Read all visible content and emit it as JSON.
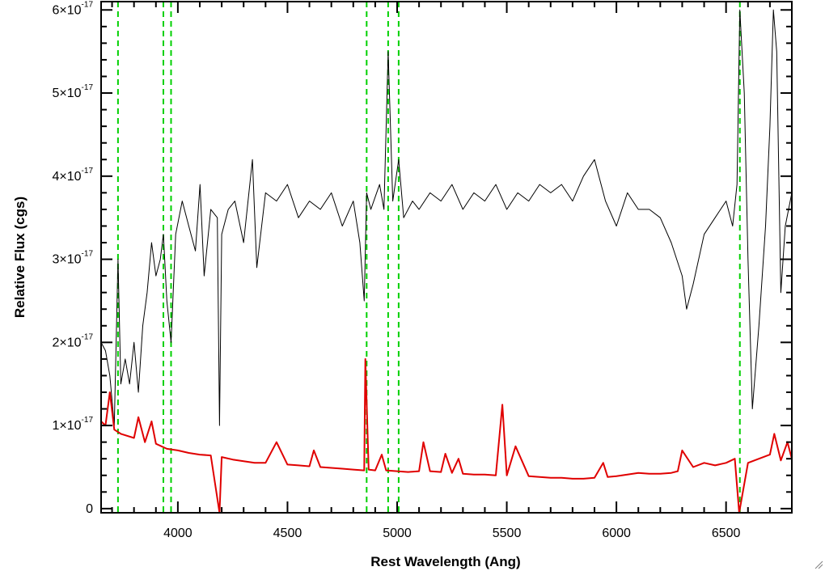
{
  "chart_data": {
    "type": "line",
    "xlabel": "Rest Wavelength (Ang)",
    "ylabel": "Relative Flux (cgs)",
    "xlim": [
      3650,
      6800
    ],
    "ylim": [
      -5e-19,
      6.1e-17
    ],
    "x_ticks": [
      {
        "value": 4000,
        "label": "4000"
      },
      {
        "value": 4500,
        "label": "4500"
      },
      {
        "value": 5000,
        "label": "5000"
      },
      {
        "value": 5500,
        "label": "5500"
      },
      {
        "value": 6000,
        "label": "6000"
      },
      {
        "value": 6500,
        "label": "6500"
      }
    ],
    "y_ticks": [
      {
        "value": 0,
        "mant": "0",
        "exp": ""
      },
      {
        "value": 1e-17,
        "mant": "1×10",
        "exp": "-17"
      },
      {
        "value": 2e-17,
        "mant": "2×10",
        "exp": "-17"
      },
      {
        "value": 3e-17,
        "mant": "3×10",
        "exp": "-17"
      },
      {
        "value": 4e-17,
        "mant": "4×10",
        "exp": "-17"
      },
      {
        "value": 5e-17,
        "mant": "5×10",
        "exp": "-17"
      },
      {
        "value": 6e-17,
        "mant": "6×10",
        "exp": "-17"
      }
    ],
    "grid": false,
    "series": [
      {
        "color": "#000000",
        "x": [
          3650,
          3670,
          3690,
          3710,
          3727,
          3740,
          3760,
          3780,
          3800,
          3820,
          3840,
          3860,
          3880,
          3900,
          3920,
          3934,
          3950,
          3969,
          3990,
          4020,
          4050,
          4080,
          4101,
          4120,
          4150,
          4180,
          4190,
          4200,
          4230,
          4260,
          4300,
          4340,
          4360,
          4400,
          4450,
          4500,
          4550,
          4600,
          4650,
          4700,
          4750,
          4800,
          4830,
          4850,
          4861,
          4880,
          4920,
          4940,
          4959,
          4980,
          5007,
          5030,
          5070,
          5100,
          5150,
          5200,
          5250,
          5300,
          5350,
          5400,
          5450,
          5500,
          5550,
          5600,
          5650,
          5700,
          5750,
          5800,
          5850,
          5900,
          5950,
          6000,
          6050,
          6100,
          6150,
          6200,
          6250,
          6300,
          6320,
          6350,
          6400,
          6450,
          6500,
          6530,
          6550,
          6563,
          6583,
          6600,
          6620,
          6650,
          6680,
          6700,
          6716,
          6731,
          6750,
          6770,
          6800
        ],
        "y": [
          2e-17,
          1.9e-17,
          1.6e-17,
          1e-17,
          3e-17,
          1.5e-17,
          1.8e-17,
          1.5e-17,
          2e-17,
          1.4e-17,
          2.2e-17,
          2.6e-17,
          3.2e-17,
          2.8e-17,
          3e-17,
          3.3e-17,
          2.5e-17,
          2e-17,
          3.3e-17,
          3.7e-17,
          3.4e-17,
          3.1e-17,
          3.9e-17,
          2.8e-17,
          3.6e-17,
          3.5e-17,
          1e-17,
          3.3e-17,
          3.6e-17,
          3.7e-17,
          3.2e-17,
          4.2e-17,
          2.9e-17,
          3.8e-17,
          3.7e-17,
          3.9e-17,
          3.5e-17,
          3.7e-17,
          3.6e-17,
          3.8e-17,
          3.4e-17,
          3.7e-17,
          3.2e-17,
          2.5e-17,
          3.8e-17,
          3.6e-17,
          3.9e-17,
          3.6e-17,
          5.5e-17,
          3.7e-17,
          4.2e-17,
          3.5e-17,
          3.7e-17,
          3.6e-17,
          3.8e-17,
          3.7e-17,
          3.9e-17,
          3.6e-17,
          3.8e-17,
          3.7e-17,
          3.9e-17,
          3.6e-17,
          3.8e-17,
          3.7e-17,
          3.9e-17,
          3.8e-17,
          3.9e-17,
          3.7e-17,
          4e-17,
          4.2e-17,
          3.7e-17,
          3.4e-17,
          3.8e-17,
          3.6e-17,
          3.6e-17,
          3.5e-17,
          3.2e-17,
          2.8e-17,
          2.4e-17,
          2.7e-17,
          3.3e-17,
          3.5e-17,
          3.7e-17,
          3.4e-17,
          3.9e-17,
          6e-17,
          5e-17,
          3e-17,
          1.2e-17,
          2.2e-17,
          3.4e-17,
          4.6e-17,
          6e-17,
          5.5e-17,
          2.6e-17,
          3.4e-17,
          3.8e-17
        ]
      },
      {
        "color": "#e00000",
        "x": [
          3650,
          3670,
          3690,
          3710,
          3740,
          3800,
          3820,
          3850,
          3880,
          3900,
          3950,
          4000,
          4050,
          4100,
          4150,
          4190,
          4200,
          4250,
          4300,
          4350,
          4400,
          4450,
          4500,
          4550,
          4600,
          4620,
          4650,
          4700,
          4750,
          4800,
          4850,
          4855,
          4870,
          4900,
          4930,
          4950,
          5000,
          5050,
          5100,
          5120,
          5150,
          5200,
          5220,
          5250,
          5280,
          5300,
          5350,
          5400,
          5450,
          5480,
          5500,
          5540,
          5600,
          5650,
          5700,
          5750,
          5800,
          5850,
          5900,
          5940,
          5960,
          6000,
          6050,
          6100,
          6150,
          6200,
          6250,
          6280,
          6300,
          6350,
          6400,
          6450,
          6500,
          6540,
          6560,
          6600,
          6650,
          6700,
          6720,
          6750,
          6780,
          6800
        ],
        "y": [
          1.05e-17,
          1e-17,
          1.4e-17,
          9.5e-18,
          9e-18,
          8.5e-18,
          1.1e-17,
          8e-18,
          1.05e-17,
          7.8e-18,
          7.2e-18,
          7e-18,
          6.7e-18,
          6.5e-18,
          6.4e-18,
          -5e-19,
          6.2e-18,
          5.9e-18,
          5.7e-18,
          5.5e-18,
          5.5e-18,
          8e-18,
          5.3e-18,
          5.2e-18,
          5.1e-18,
          7e-18,
          5e-18,
          4.9e-18,
          4.8e-18,
          4.7e-18,
          4.6e-18,
          1.8e-17,
          4.7e-18,
          4.6e-18,
          6.5e-18,
          4.6e-18,
          4.5e-18,
          4.4e-18,
          4.5e-18,
          8e-18,
          4.5e-18,
          4.4e-18,
          6.6e-18,
          4.3e-18,
          6e-18,
          4.2e-18,
          4.1e-18,
          4.1e-18,
          4e-18,
          1.25e-17,
          4e-18,
          7.5e-18,
          3.9e-18,
          3.8e-18,
          3.7e-18,
          3.7e-18,
          3.6e-18,
          3.6e-18,
          3.7e-18,
          5.5e-18,
          3.8e-18,
          3.9e-18,
          4.1e-18,
          4.3e-18,
          4.2e-18,
          4.2e-18,
          4.3e-18,
          4.5e-18,
          7e-18,
          5e-18,
          5.5e-18,
          5.2e-18,
          5.5e-18,
          6e-18,
          -5e-19,
          5.5e-18,
          6e-18,
          6.5e-18,
          9e-18,
          5.8e-18,
          8e-18,
          6e-18
        ]
      }
    ],
    "vlines": [
      {
        "x": 3727,
        "color": "#00d000",
        "style": "dashed"
      },
      {
        "x": 3934,
        "color": "#00d000",
        "style": "dashed"
      },
      {
        "x": 3969,
        "color": "#00d000",
        "style": "dashed"
      },
      {
        "x": 4861,
        "color": "#00d000",
        "style": "dashed"
      },
      {
        "x": 4959,
        "color": "#00d000",
        "style": "dashed"
      },
      {
        "x": 5007,
        "color": "#00d000",
        "style": "dashed"
      },
      {
        "x": 6563,
        "color": "#00d000",
        "style": "dashed"
      }
    ]
  }
}
